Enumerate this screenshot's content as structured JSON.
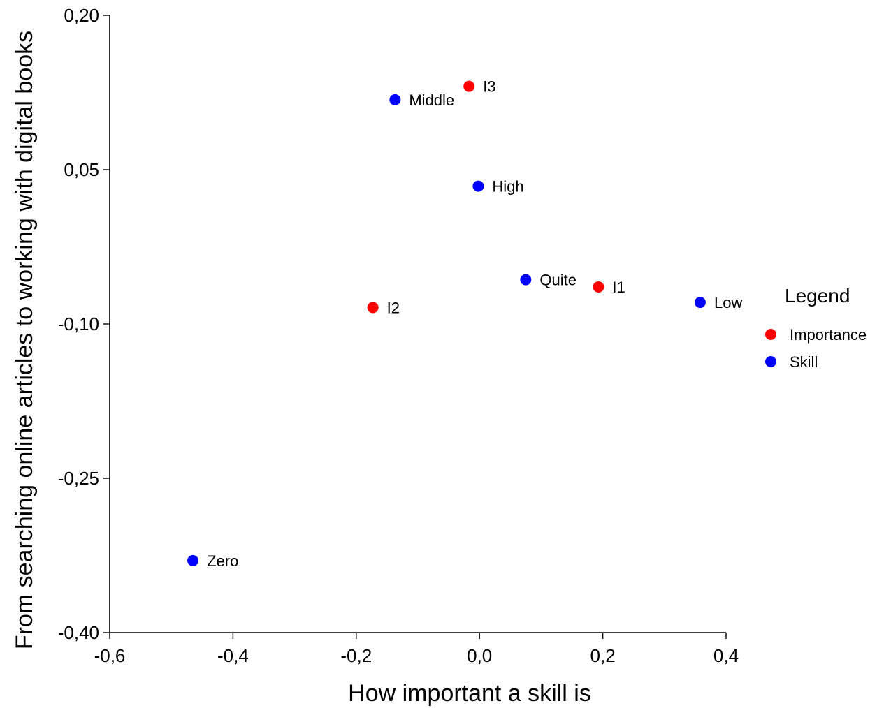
{
  "chart_data": {
    "type": "scatter",
    "xlabel": "How important a skill is",
    "ylabel": "From searching online articles to working with digital books",
    "xlim": [
      -0.6,
      0.4
    ],
    "ylim": [
      -0.4,
      0.2
    ],
    "x_ticks": [
      -0.6,
      -0.4,
      -0.2,
      0.0,
      0.2,
      0.4
    ],
    "x_tick_labels": [
      "-0,6",
      "-0,4",
      "-0,2",
      "0,0",
      "0,2",
      "0,4"
    ],
    "y_ticks": [
      0.2,
      0.05,
      -0.1,
      -0.25,
      -0.4
    ],
    "y_tick_labels": [
      "0,20",
      "0,05",
      "-0,10",
      "-0,25",
      "-0,40"
    ],
    "grid": false,
    "legend": {
      "title": "Legend",
      "position": "right",
      "entries": [
        {
          "label": "Importance",
          "color": "#ff0000"
        },
        {
          "label": "Skill",
          "color": "#0000ff"
        }
      ]
    },
    "series": [
      {
        "name": "Importance",
        "color": "#ff0000",
        "points": [
          {
            "label": "I3",
            "x": -0.017,
            "y": 0.131
          },
          {
            "label": "I1",
            "x": 0.193,
            "y": -0.064
          },
          {
            "label": "I2",
            "x": -0.173,
            "y": -0.084
          }
        ]
      },
      {
        "name": "Skill",
        "color": "#0000ff",
        "points": [
          {
            "label": "Middle",
            "x": -0.137,
            "y": 0.118
          },
          {
            "label": "High",
            "x": -0.002,
            "y": 0.034
          },
          {
            "label": "Quite",
            "x": 0.075,
            "y": -0.057
          },
          {
            "label": "Low",
            "x": 0.358,
            "y": -0.079
          },
          {
            "label": "Zero",
            "x": -0.465,
            "y": -0.33
          }
        ]
      }
    ]
  }
}
